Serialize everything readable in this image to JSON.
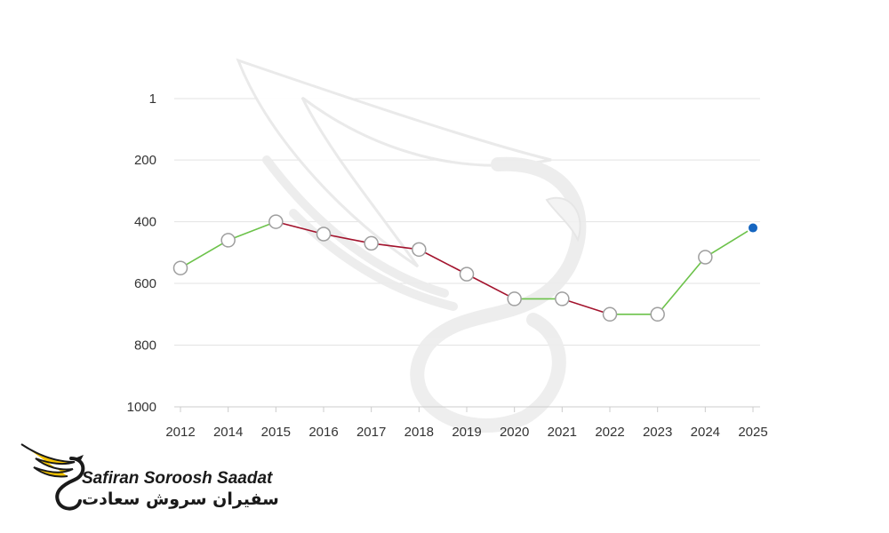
{
  "chart_data": {
    "type": "line",
    "categories": [
      "2012",
      "2014",
      "2015",
      "2016",
      "2017",
      "2018",
      "2019",
      "2020",
      "2021",
      "2022",
      "2023",
      "2024",
      "2025"
    ],
    "values": [
      550,
      460,
      400,
      440,
      470,
      490,
      570,
      650,
      650,
      700,
      700,
      515,
      420
    ],
    "yticks": [
      "1",
      "200",
      "400",
      "600",
      "800",
      "1000"
    ],
    "ytick_values": [
      1,
      200,
      400,
      600,
      800,
      1000
    ],
    "ylim": [
      1,
      1000
    ],
    "y_inverted": true,
    "grid": true,
    "colors": {
      "improving": "#6cc24a",
      "declining": "#a3132d",
      "highlight": "#1565c0",
      "marker_fill": "#ffffff",
      "marker_stroke": "#9e9e9e"
    }
  },
  "brand": {
    "name_en": "Safiran Soroosh Saadat",
    "name_fa": "سفیران سروش سعادت",
    "logo_icon": "phoenix-s-logo",
    "logo_color": "#f5c400"
  },
  "watermark_icon": "phoenix-watermark-icon"
}
